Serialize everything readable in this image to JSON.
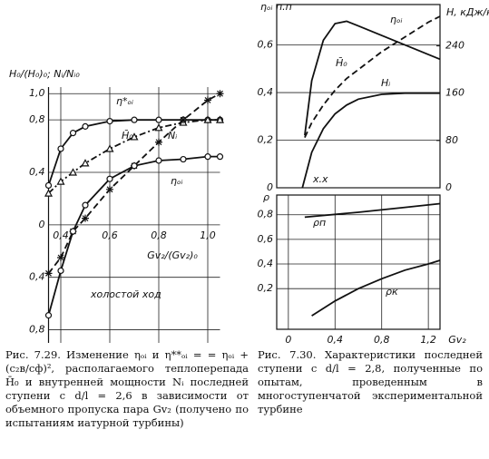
{
  "chart_data": [
    {
      "type": "line",
      "ylabel": "H₀/(H₀)₀; Nᵢ/Nᵢ₀",
      "xlabel": "Gv₂/(Gv₂)₀",
      "annotation": "холостой ход",
      "x": [
        0.35,
        0.4,
        0.45,
        0.5,
        0.6,
        0.7,
        0.8,
        0.9,
        1.0,
        1.05
      ],
      "xlim": [
        0.35,
        1.05
      ],
      "xticks": [
        {
          "value": 0.4,
          "label": "0,4"
        },
        {
          "value": 0.6,
          "label": "0,6"
        },
        {
          "value": 0.8,
          "label": "0,8"
        },
        {
          "value": 1.0,
          "label": "1,0"
        }
      ],
      "ylim": [
        -0.9,
        1.05
      ],
      "yticks": [
        {
          "value": 1.0,
          "label": "1,0"
        },
        {
          "value": 0.8,
          "label": "0,8"
        },
        {
          "value": 0.4,
          "label": "0,4"
        },
        0,
        {
          "value": -0.4,
          "label": "0,4"
        },
        {
          "value": -0.8,
          "label": "0,8"
        }
      ],
      "series": [
        {
          "name": "η*ₒᵢ",
          "color": "#111",
          "marker": "circle",
          "dash": "solid",
          "values": [
            0.3,
            0.58,
            0.7,
            0.75,
            0.79,
            0.8,
            0.8,
            0.8,
            0.8,
            0.8
          ]
        },
        {
          "name": "H̄₀",
          "color": "#111",
          "marker": "triangle",
          "dash": "dashdot",
          "values": [
            0.24,
            0.33,
            0.4,
            0.47,
            0.58,
            0.67,
            0.74,
            0.78,
            0.8,
            0.8
          ]
        },
        {
          "name": "Nᵢ",
          "color": "#111",
          "marker": "star",
          "dash": "dashed",
          "values": [
            -0.37,
            -0.25,
            -0.05,
            0.05,
            0.27,
            0.45,
            0.63,
            0.8,
            0.95,
            1.0
          ]
        },
        {
          "name": "ηₒᵢ",
          "color": "#111",
          "marker": "circle",
          "dash": "solid",
          "values": [
            -0.69,
            -0.35,
            -0.05,
            0.15,
            0.35,
            0.45,
            0.49,
            0.5,
            0.52,
            0.52
          ]
        }
      ]
    },
    {
      "type": "line",
      "ylabel": "ηₒᵢ п.п",
      "y2label": "H, кДж/кг",
      "annotation": "x.x",
      "xlim": [
        -0.1,
        1.3
      ],
      "ylim": [
        0,
        0.77
      ],
      "yticks": [
        0,
        {
          "value": 0.2,
          "label": "0,2"
        },
        {
          "value": 0.4,
          "label": "0,4"
        },
        {
          "value": 0.6,
          "label": "0,6"
        }
      ],
      "y2lim": [
        0,
        310
      ],
      "y2ticks": [
        0,
        80,
        160,
        240
      ],
      "series": [
        {
          "name": "ηₒᵢ",
          "color": "#111",
          "dash": "solid",
          "x": [
            0.14,
            0.2,
            0.3,
            0.4,
            0.5,
            0.6,
            0.8,
            1.0,
            1.2,
            1.3
          ],
          "values": [
            0.22,
            0.45,
            0.62,
            0.69,
            0.7,
            0.68,
            0.64,
            0.6,
            0.56,
            0.54
          ]
        },
        {
          "name": "H̄₀",
          "color": "#111",
          "dash": "dashed",
          "axis": "y2",
          "x": [
            0.14,
            0.2,
            0.3,
            0.4,
            0.5,
            0.6,
            0.8,
            1.0,
            1.2,
            1.3
          ],
          "values": [
            85,
            110,
            140,
            165,
            185,
            200,
            230,
            255,
            280,
            290
          ]
        },
        {
          "name": "Hᵢ",
          "color": "#111",
          "dash": "solid",
          "axis": "y2",
          "x": [
            0.12,
            0.2,
            0.3,
            0.4,
            0.5,
            0.6,
            0.8,
            1.0,
            1.2,
            1.3
          ],
          "values": [
            0,
            60,
            100,
            125,
            140,
            150,
            158,
            160,
            160,
            160
          ]
        }
      ]
    },
    {
      "type": "line",
      "ylabel": "ρ",
      "xlabel": "Gv₂",
      "xlim": [
        -0.1,
        1.3
      ],
      "xticks": [
        0,
        {
          "value": 0.4,
          "label": "0,4"
        },
        {
          "value": 0.8,
          "label": "0,8"
        },
        {
          "value": 1.2,
          "label": "1,2"
        }
      ],
      "ylim": [
        -0.13,
        0.96
      ],
      "yticks": [
        {
          "value": 0.8,
          "label": "0,8"
        },
        {
          "value": 0.6,
          "label": "0,6"
        },
        {
          "value": 0.4,
          "label": "0,4"
        },
        {
          "value": 0.2,
          "label": "0,2"
        }
      ],
      "series": [
        {
          "name": "ρп",
          "color": "#111",
          "dash": "solid",
          "x": [
            0.14,
            0.6,
            1.0,
            1.3
          ],
          "values": [
            0.78,
            0.82,
            0.86,
            0.89
          ]
        },
        {
          "name": "ρк",
          "color": "#111",
          "dash": "solid",
          "x": [
            0.2,
            0.4,
            0.6,
            0.8,
            1.0,
            1.2,
            1.3
          ],
          "values": [
            -0.02,
            0.1,
            0.2,
            0.28,
            0.35,
            0.4,
            0.43
          ]
        }
      ]
    }
  ],
  "captions": [
    "Рис. 7.29. Изменение ηₒᵢ и η**ₒᵢ = = ηₒᵢ + (c₂в/cф)², располагаемого теплоперепада H̄₀ и внутренней мощности Nᵢ последней ступени с d/l = 2,6 в зависимости от объемного пропуска пара Gv₂ (получено по испытаниям иатурной турбины)",
    "Рис. 7.30. Характеристики последней ступени с d/l = 2,8, полученные по опытам, проведенным в многоступенчатой экспериментальной турбине"
  ]
}
